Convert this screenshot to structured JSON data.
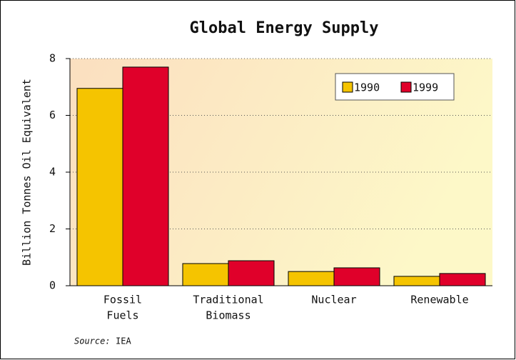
{
  "chart_data": {
    "type": "bar",
    "title": "Global Energy Supply",
    "y_label": "Billion Tonnes Oil Equivalent",
    "categories": [
      [
        "Fossil",
        "Fuels"
      ],
      [
        "Traditional",
        "Biomass"
      ],
      [
        "Nuclear"
      ],
      [
        "Renewable"
      ]
    ],
    "series": [
      {
        "name": "1990",
        "color": "#f5c400",
        "values": [
          6.95,
          0.78,
          0.5,
          0.33
        ]
      },
      {
        "name": "1999",
        "color": "#e0002a",
        "values": [
          7.7,
          0.88,
          0.63,
          0.43
        ]
      }
    ],
    "ylim": [
      0,
      8
    ],
    "yticks": [
      0,
      2,
      4,
      6,
      8
    ],
    "grid": true,
    "legend": "upper right",
    "source_label": "Source:",
    "source": "IEA"
  }
}
